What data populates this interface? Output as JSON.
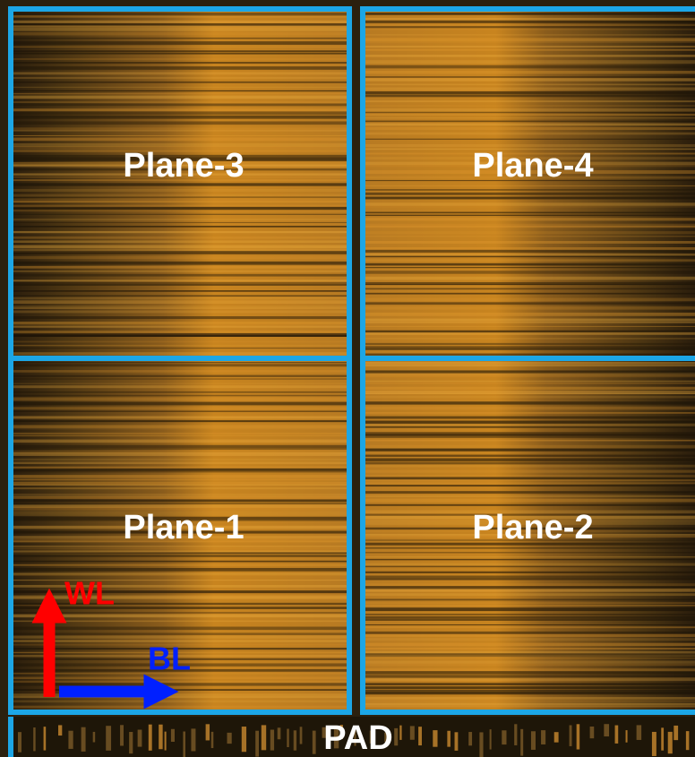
{
  "planes": [
    {
      "label": "Plane-3"
    },
    {
      "label": "Plane-4"
    },
    {
      "label": "Plane-1"
    },
    {
      "label": "Plane-2"
    }
  ],
  "axes": {
    "wl": "WL",
    "bl": "BL"
  },
  "pad": "PAD"
}
